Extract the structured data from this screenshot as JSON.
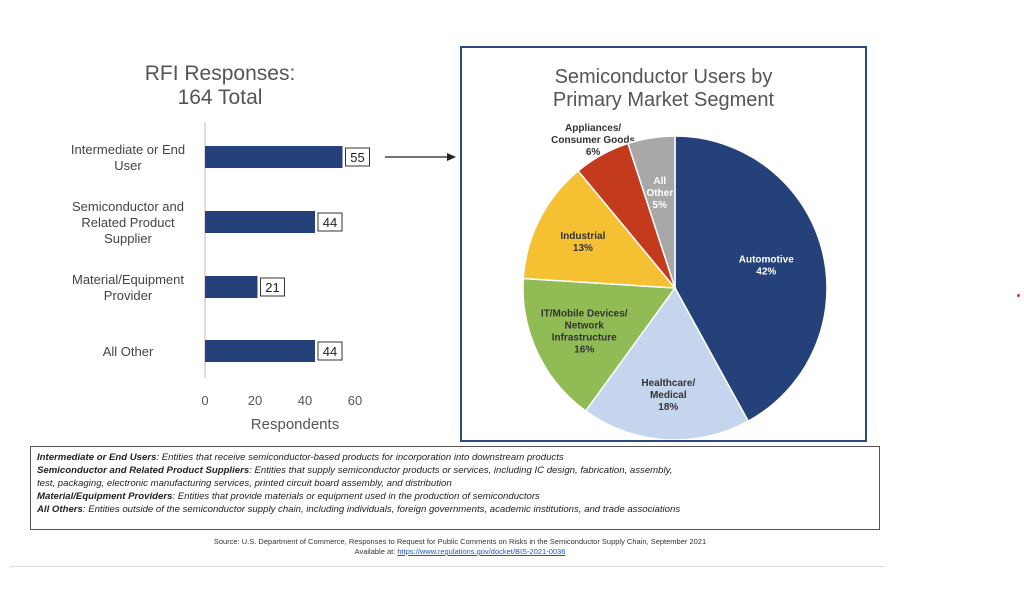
{
  "bar_chart": {
    "title_line1": "RFI Responses:",
    "title_line2": "164 Total",
    "xlabel": "Respondents"
  },
  "pie_chart": {
    "title_line1": "Semiconductor Users by",
    "title_line2": "Primary Market Segment"
  },
  "legend": {
    "items": [
      {
        "term": "Intermediate or End Users",
        "desc": ": Entities that receive semiconductor-based products for incorporation into downstream products"
      },
      {
        "term": "Semiconductor and Related Product Suppliers",
        "desc": ": Entities that supply semiconductor products or services, including IC design, fabrication, assembly,"
      },
      {
        "term": "",
        "desc": "test, packaging, electronic manufacturing services, printed circuit board assembly, and  distribution"
      },
      {
        "term": "Material/Equipment Providers",
        "desc": ": Entities that provide materials or equipment used in the production of semiconductors"
      },
      {
        "term": "All Others",
        "desc": ": Entities outside of the semiconductor supply chain, including individuals, foreign governments, academic institutions, and trade associations"
      }
    ]
  },
  "source": {
    "line1": "Source: U.S. Department of Commerce, Responses to Request for Public Comments on Risks in the Semiconductor Supply Chain, September 2021",
    "line2_prefix": "Available at: ",
    "link_text": "https://www.regulations.gov/docket/BIS-2021-0036"
  },
  "colors": {
    "bar": "#24417a",
    "automotive": "#24417a",
    "healthcare": "#c5d5ee",
    "it_mobile": "#90bb55",
    "industrial": "#f5c032",
    "appliances": "#c33a1c",
    "all_other": "#a8a8a8"
  },
  "chart_data": [
    {
      "type": "bar",
      "orientation": "horizontal",
      "title": "RFI Responses: 164 Total",
      "categories": [
        [
          "Intermediate or End",
          "User"
        ],
        [
          "Semiconductor and",
          "Related Product",
          "Supplier"
        ],
        [
          "Material/Equipment",
          "Provider"
        ],
        [
          "All Other"
        ]
      ],
      "values": [
        55,
        44,
        21,
        44
      ],
      "xlabel": "Respondents",
      "xlim": [
        0,
        60
      ],
      "xticks": [
        0,
        20,
        40,
        60
      ],
      "grid": false
    },
    {
      "type": "pie",
      "title": "Semiconductor Users by Primary Market Segment",
      "slices": [
        {
          "label": [
            "Automotive"
          ],
          "value": 42,
          "pct": "42%",
          "color": "#24417a",
          "text_color": "#ffffff"
        },
        {
          "label": [
            "Healthcare/",
            "Medical"
          ],
          "value": 18,
          "pct": "18%",
          "color": "#c5d5ee",
          "text_color": "#333333"
        },
        {
          "label": [
            "IT/Mobile Devices/",
            "Network",
            "Infrastructure"
          ],
          "value": 16,
          "pct": "16%",
          "color": "#90bb55",
          "text_color": "#333333"
        },
        {
          "label": [
            "Industrial"
          ],
          "value": 13,
          "pct": "13%",
          "color": "#f5c032",
          "text_color": "#333333"
        },
        {
          "label": [
            "Appliances/",
            "Consumer Goods"
          ],
          "value": 6,
          "pct": "6%",
          "color": "#c33a1c",
          "text_color": "#333333"
        },
        {
          "label": [
            "All",
            "Other"
          ],
          "value": 5,
          "pct": "5%",
          "color": "#a8a8a8",
          "text_color": "#ffffff"
        }
      ]
    }
  ]
}
